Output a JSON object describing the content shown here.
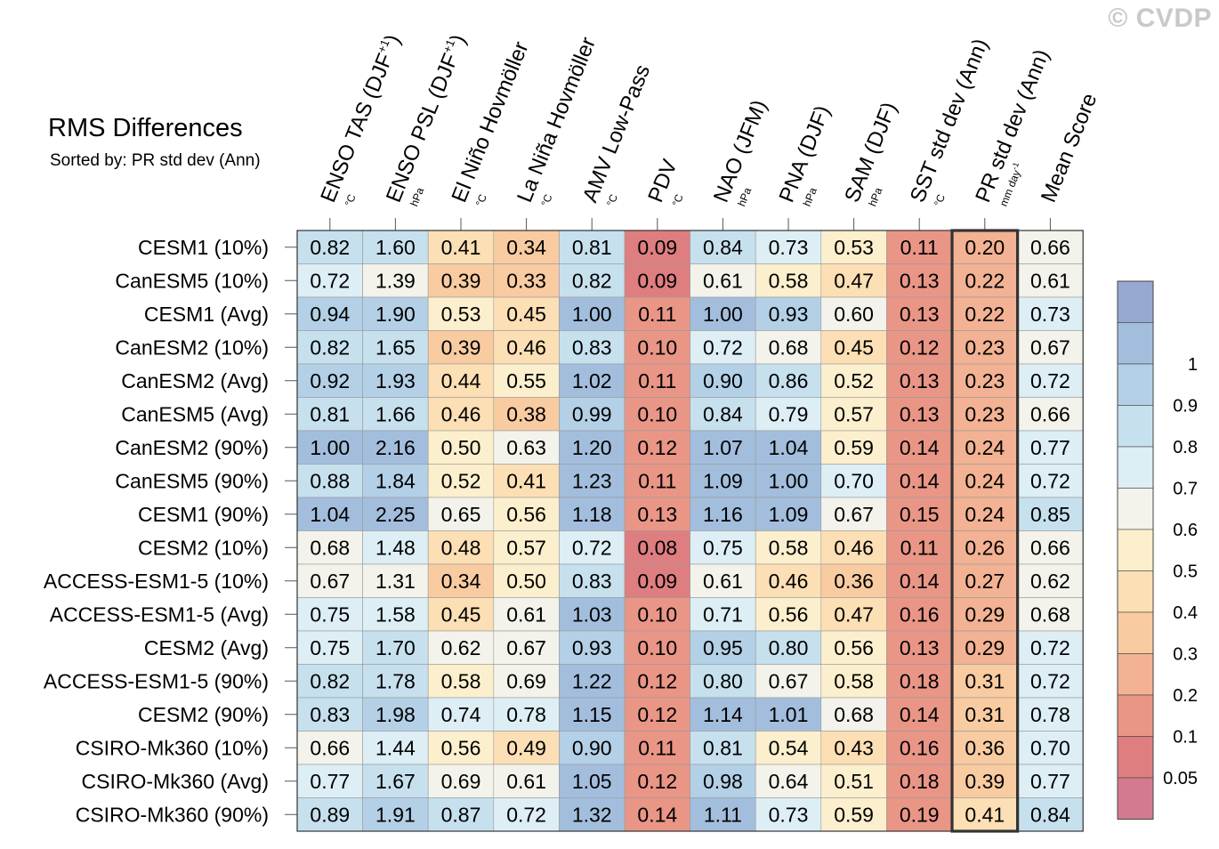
{
  "watermark": "© CVDP",
  "chart_data": {
    "type": "heatmap",
    "title": "RMS Differences",
    "subtitle": "Sorted by: PR std dev (Ann)",
    "highlighted_column": "PR std dev (Ann)",
    "columns": [
      {
        "label": "ENSO TAS (DJF",
        "sup": "+1",
        "close": ")",
        "unit": "°C"
      },
      {
        "label": "ENSO PSL (DJF",
        "sup": "+1",
        "close": ")",
        "unit": "hPa"
      },
      {
        "label": "El Niño Hovmöller",
        "unit": "°C"
      },
      {
        "label": "La Niña Hovmöller",
        "unit": "°C"
      },
      {
        "label": "AMV Low-Pass",
        "unit": "°C"
      },
      {
        "label": "PDV",
        "unit": "°C"
      },
      {
        "label": "NAO (JFM)",
        "unit": "hPa"
      },
      {
        "label": "PNA (DJF)",
        "unit": "hPa"
      },
      {
        "label": "SAM (DJF)",
        "unit": "hPa"
      },
      {
        "label": "SST std dev (Ann)",
        "unit": "°C"
      },
      {
        "label": "PR std dev (Ann)",
        "unit": "mm day",
        "unit_sup": "-1"
      },
      {
        "label": "Mean Score",
        "unit": ""
      }
    ],
    "rows": [
      "CESM1 (10%)",
      "CanESM5 (10%)",
      "CESM1 (Avg)",
      "CanESM2 (10%)",
      "CanESM2 (Avg)",
      "CanESM5 (Avg)",
      "CanESM2 (90%)",
      "CanESM5 (90%)",
      "CESM1 (90%)",
      "CESM2 (10%)",
      "ACCESS-ESM1-5 (10%)",
      "ACCESS-ESM1-5 (Avg)",
      "CESM2 (Avg)",
      "ACCESS-ESM1-5 (90%)",
      "CESM2 (90%)",
      "CSIRO-Mk360 (10%)",
      "CSIRO-Mk360 (Avg)",
      "CSIRO-Mk360 (90%)"
    ],
    "values": [
      [
        "0.82",
        "1.60",
        "0.41",
        "0.34",
        "0.81",
        "0.09",
        "0.84",
        "0.73",
        "0.53",
        "0.11",
        "0.20",
        "0.66"
      ],
      [
        "0.72",
        "1.39",
        "0.39",
        "0.33",
        "0.82",
        "0.09",
        "0.61",
        "0.58",
        "0.47",
        "0.13",
        "0.22",
        "0.61"
      ],
      [
        "0.94",
        "1.90",
        "0.53",
        "0.45",
        "1.00",
        "0.11",
        "1.00",
        "0.93",
        "0.60",
        "0.13",
        "0.22",
        "0.73"
      ],
      [
        "0.82",
        "1.65",
        "0.39",
        "0.46",
        "0.83",
        "0.10",
        "0.72",
        "0.68",
        "0.45",
        "0.12",
        "0.23",
        "0.67"
      ],
      [
        "0.92",
        "1.93",
        "0.44",
        "0.55",
        "1.02",
        "0.11",
        "0.90",
        "0.86",
        "0.52",
        "0.13",
        "0.23",
        "0.72"
      ],
      [
        "0.81",
        "1.66",
        "0.46",
        "0.38",
        "0.99",
        "0.10",
        "0.84",
        "0.79",
        "0.57",
        "0.13",
        "0.23",
        "0.66"
      ],
      [
        "1.00",
        "2.16",
        "0.50",
        "0.63",
        "1.20",
        "0.12",
        "1.07",
        "1.04",
        "0.59",
        "0.14",
        "0.24",
        "0.77"
      ],
      [
        "0.88",
        "1.84",
        "0.52",
        "0.41",
        "1.23",
        "0.11",
        "1.09",
        "1.00",
        "0.70",
        "0.14",
        "0.24",
        "0.72"
      ],
      [
        "1.04",
        "2.25",
        "0.65",
        "0.56",
        "1.18",
        "0.13",
        "1.16",
        "1.09",
        "0.67",
        "0.15",
        "0.24",
        "0.85"
      ],
      [
        "0.68",
        "1.48",
        "0.48",
        "0.57",
        "0.72",
        "0.08",
        "0.75",
        "0.58",
        "0.46",
        "0.11",
        "0.26",
        "0.66"
      ],
      [
        "0.67",
        "1.31",
        "0.34",
        "0.50",
        "0.83",
        "0.09",
        "0.61",
        "0.46",
        "0.36",
        "0.14",
        "0.27",
        "0.62"
      ],
      [
        "0.75",
        "1.58",
        "0.45",
        "0.61",
        "1.03",
        "0.10",
        "0.71",
        "0.56",
        "0.47",
        "0.16",
        "0.29",
        "0.68"
      ],
      [
        "0.75",
        "1.70",
        "0.62",
        "0.67",
        "0.93",
        "0.10",
        "0.95",
        "0.80",
        "0.56",
        "0.13",
        "0.29",
        "0.72"
      ],
      [
        "0.82",
        "1.78",
        "0.58",
        "0.69",
        "1.22",
        "0.12",
        "0.80",
        "0.67",
        "0.58",
        "0.18",
        "0.31",
        "0.72"
      ],
      [
        "0.83",
        "1.98",
        "0.74",
        "0.78",
        "1.15",
        "0.12",
        "1.14",
        "1.01",
        "0.68",
        "0.14",
        "0.31",
        "0.78"
      ],
      [
        "0.66",
        "1.44",
        "0.56",
        "0.49",
        "0.90",
        "0.11",
        "0.81",
        "0.54",
        "0.43",
        "0.16",
        "0.36",
        "0.70"
      ],
      [
        "0.77",
        "1.67",
        "0.69",
        "0.61",
        "1.05",
        "0.12",
        "0.98",
        "0.64",
        "0.51",
        "0.18",
        "0.39",
        "0.77"
      ],
      [
        "0.89",
        "1.91",
        "0.87",
        "0.72",
        "1.32",
        "0.14",
        "1.11",
        "0.73",
        "0.59",
        "0.19",
        "0.41",
        "0.84"
      ]
    ],
    "colorbar": {
      "colors": [
        "#d47a90",
        "#de7e80",
        "#e99687",
        "#f2b293",
        "#f8cba1",
        "#fcdfb4",
        "#fcefcd",
        "#f3f3eb",
        "#ddeef5",
        "#c6e0ee",
        "#b3d0e6",
        "#a3bedd",
        "#97a9d2"
      ],
      "labels": [
        "0.05",
        "0.1",
        "0.2",
        "0.3",
        "0.4",
        "0.5",
        "0.6",
        "0.7",
        "0.8",
        "0.9",
        "1"
      ]
    }
  }
}
